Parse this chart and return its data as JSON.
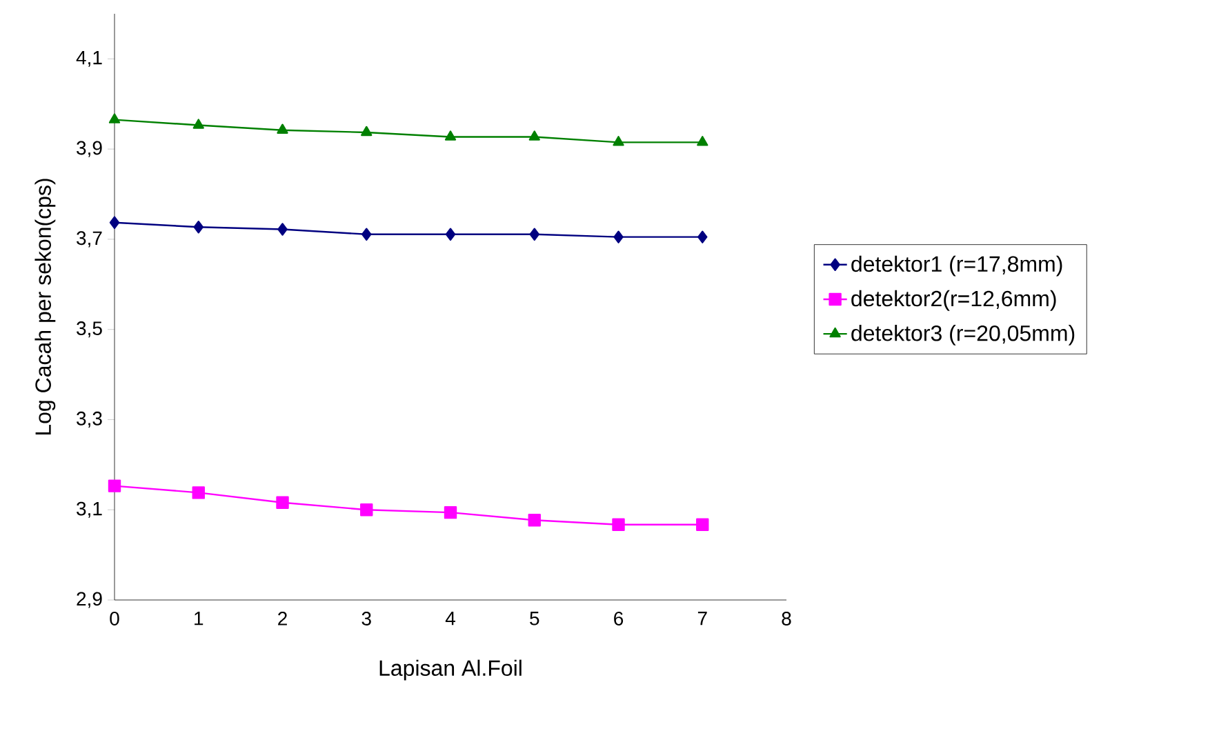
{
  "chart_data": {
    "type": "line",
    "xlabel": "Lapisan Al.Foil",
    "ylabel": "Log Cacah per sekon(cps)",
    "x": [
      0,
      1,
      2,
      3,
      4,
      5,
      6,
      7
    ],
    "series": [
      {
        "name": "detektor1 (r=17,8mm)",
        "color": "#000080",
        "marker": "diamond",
        "values": [
          3.737,
          3.727,
          3.722,
          3.711,
          3.711,
          3.711,
          3.705,
          3.705
        ]
      },
      {
        "name": "detektor2(r=12,6mm)",
        "color": "#ff00ff",
        "marker": "square",
        "values": [
          3.153,
          3.138,
          3.116,
          3.1,
          3.094,
          3.077,
          3.067,
          3.067
        ]
      },
      {
        "name": "detektor3 (r=20,05mm)",
        "color": "#008000",
        "marker": "triangle",
        "values": [
          3.965,
          3.953,
          3.942,
          3.937,
          3.927,
          3.927,
          3.915,
          3.915
        ]
      }
    ],
    "xlim": [
      0,
      8
    ],
    "xticks": [
      0,
      1,
      2,
      3,
      4,
      5,
      6,
      7,
      8
    ],
    "ylim": [
      2.9,
      4.2
    ],
    "yticks": [
      {
        "value": 2.9,
        "label": "2,9"
      },
      {
        "value": 3.1,
        "label": "3,1"
      },
      {
        "value": 3.3,
        "label": "3,3"
      },
      {
        "value": 3.5,
        "label": "3,5"
      },
      {
        "value": 3.7,
        "label": "3,7"
      },
      {
        "value": 3.9,
        "label": "3,9"
      },
      {
        "value": 4.1,
        "label": "4,1"
      }
    ],
    "grid": false,
    "legend": "right",
    "line_style": "solid"
  }
}
